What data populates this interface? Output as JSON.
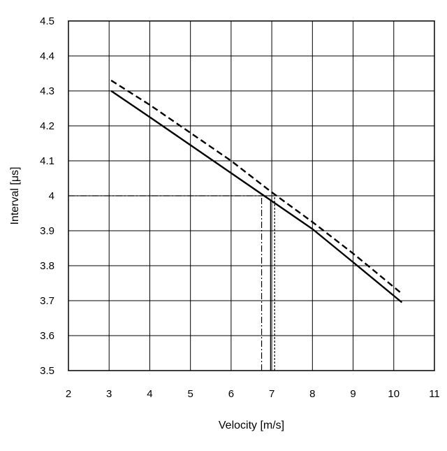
{
  "chart_data": {
    "type": "line",
    "xlabel": "Velocity [m/s]",
    "ylabel": "Interval [μs]",
    "xlim": [
      2,
      11
    ],
    "ylim": [
      3.5,
      4.5
    ],
    "xticks": [
      "2",
      "3",
      "4",
      "5",
      "6",
      "7",
      "8",
      "9",
      "10",
      "11"
    ],
    "yticks": [
      "3.5",
      "3.6",
      "3.7",
      "3.8",
      "3.9",
      "4",
      "4.1",
      "4.2",
      "4.3",
      "4.4",
      "4.5"
    ],
    "grid": true,
    "series": [
      {
        "style": "solid",
        "color": "#000000",
        "x": [
          3.05,
          4,
          5,
          6,
          7,
          8,
          9,
          10.2
        ],
        "y": [
          4.3,
          4.225,
          4.145,
          4.065,
          3.985,
          3.905,
          3.81,
          3.695
        ]
      },
      {
        "style": "dashed",
        "color": "#000000",
        "x": [
          3.05,
          4,
          5,
          6,
          7,
          8,
          9,
          10.2
        ],
        "y": [
          4.33,
          4.26,
          4.18,
          4.1,
          4.01,
          3.925,
          3.835,
          3.72
        ]
      }
    ],
    "reference_lines": [
      {
        "style": "dashdot",
        "y": 4.0,
        "x_from": 2,
        "x_to": 6.75
      },
      {
        "style": "dashdot",
        "x": 6.75,
        "y_from": 3.5,
        "y_to": 4.0
      },
      {
        "style": "dotted",
        "y": 4.0,
        "x_from": 6.75,
        "x_to": 7.07
      },
      {
        "style": "dotted",
        "x": 7.07,
        "y_from": 3.5,
        "y_to": 4.0
      },
      {
        "style": "solid-thin",
        "x": 6.97,
        "y_from": 3.5,
        "y_to": 3.985
      }
    ]
  }
}
